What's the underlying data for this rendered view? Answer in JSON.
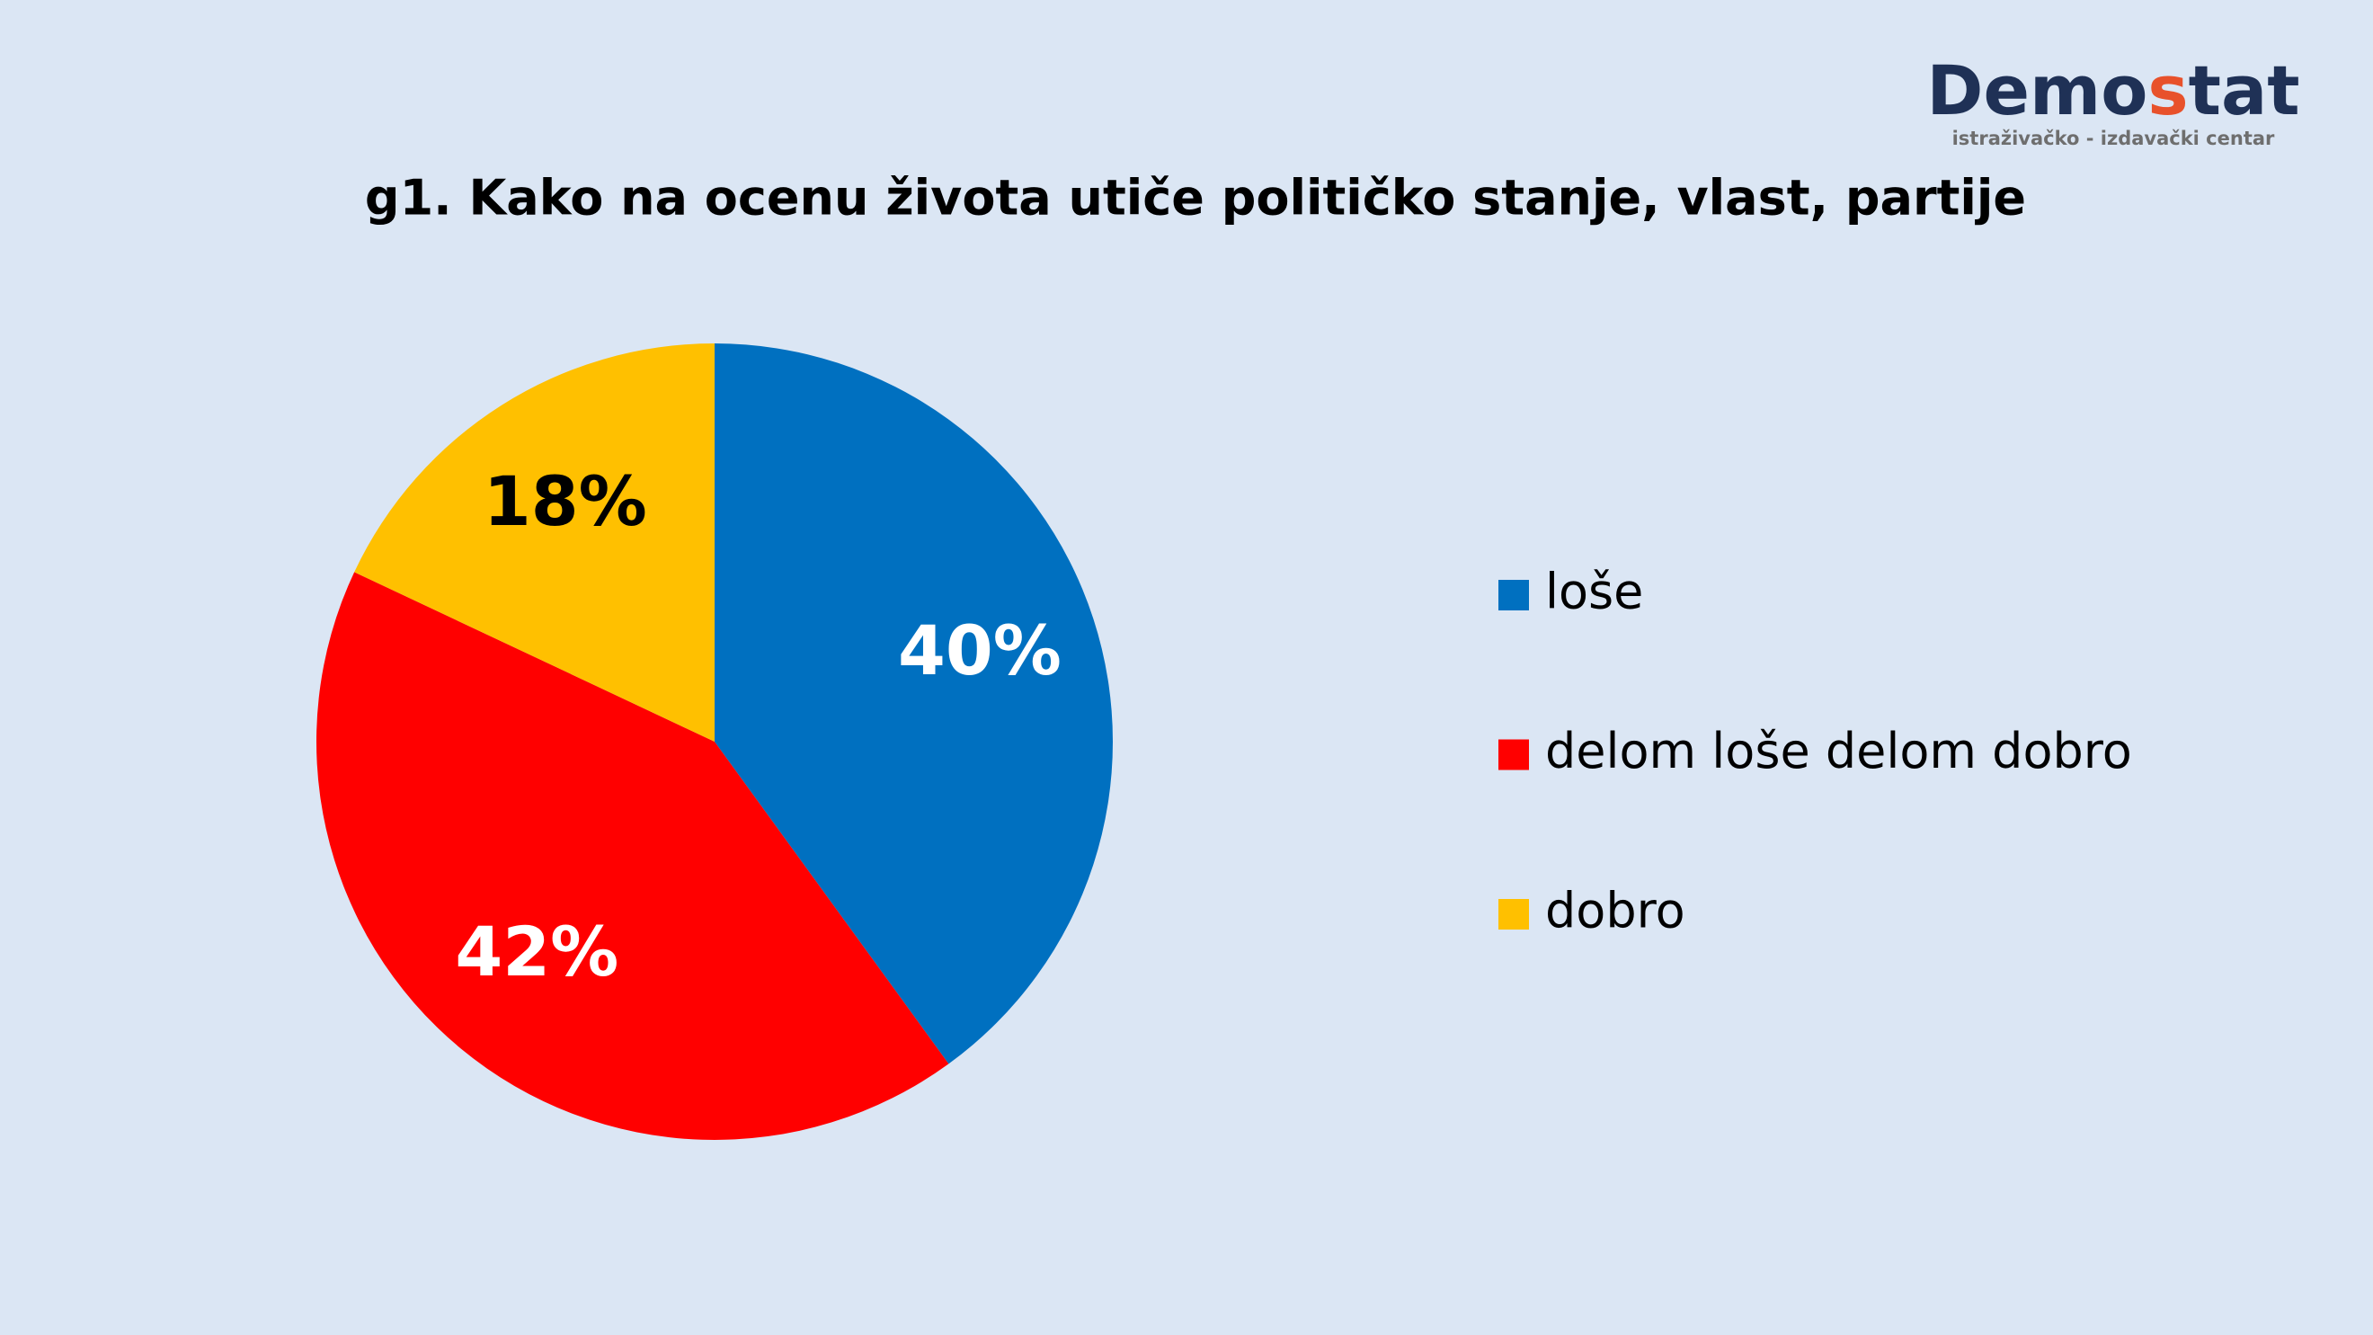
{
  "logo": {
    "name": [
      "Demo",
      "s",
      "tat"
    ],
    "tagline": "istraživačko - izdavački centar"
  },
  "chart_data": {
    "type": "pie",
    "title": "g1. Kako na ocenu života utiče političko stanje, vlast, partije",
    "categories": [
      "loše",
      "delom loše delom dobro",
      "dobro"
    ],
    "values": [
      40,
      42,
      18
    ],
    "value_labels": [
      "40%",
      "42%",
      "18%"
    ],
    "colors": [
      "#0070c0",
      "#ff0000",
      "#ffc000"
    ],
    "label_colors": [
      "#ffffff",
      "#ffffff",
      "#000000"
    ],
    "legend": "right"
  }
}
